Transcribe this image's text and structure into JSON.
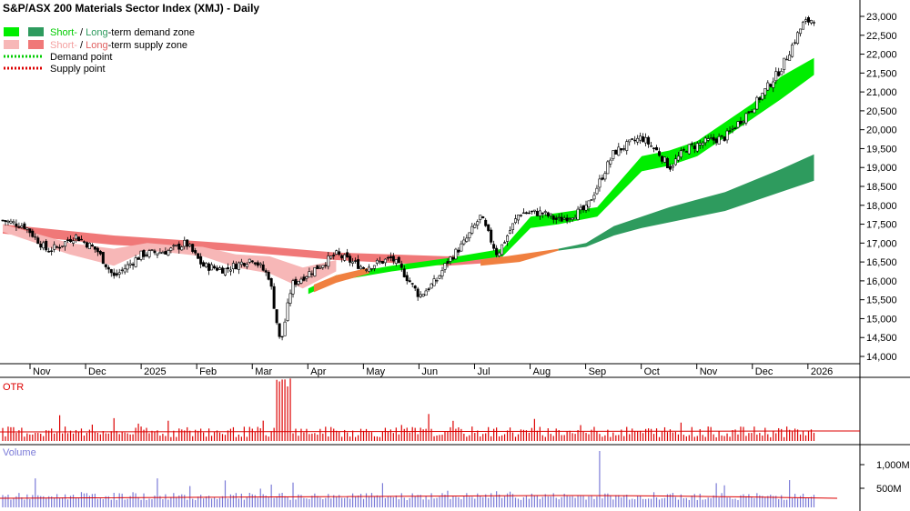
{
  "title": "S&P/ASX 200 Materials Sector Index (XMJ) - Daily",
  "legend": {
    "demand_zone_short": "Short-",
    "demand_zone_sep": " / ",
    "demand_zone_long": "Long",
    "demand_zone_rest": "-term demand zone",
    "supply_zone_short": "Short-",
    "supply_zone_sep": " / ",
    "supply_zone_long": "Long",
    "supply_zone_rest": "-term supply zone",
    "demand_point": "Demand point",
    "supply_point": "Supply point"
  },
  "colors": {
    "short_demand": "#00ee00",
    "long_demand": "#2e9b5e",
    "short_supply": "#f7b7b7",
    "long_supply": "#f07878",
    "transition": "#f08040",
    "demand_point": "#00cc00",
    "supply_point": "#dd0000",
    "otr": "#dd0000",
    "volume": "#7b7bd8",
    "volume_ma": "#dd0000"
  },
  "chart_data": {
    "type": "candlestick",
    "x_labels": [
      "Nov",
      "Dec",
      "2025",
      "Feb",
      "Mar",
      "Apr",
      "May",
      "Jun",
      "Jul",
      "Aug",
      "Sep",
      "Oct",
      "Nov",
      "Dec",
      "2026"
    ],
    "y_ticks": [
      "23,000",
      "22,500",
      "22,000",
      "21,500",
      "21,000",
      "20,500",
      "20,000",
      "19,500",
      "19,000",
      "18,500",
      "18,000",
      "17,500",
      "17,000",
      "16,500",
      "16,000",
      "15,500",
      "15,000",
      "14,500",
      "14,000"
    ],
    "ylim": [
      14000,
      23000
    ],
    "close_path": [
      [
        0,
        17600
      ],
      [
        0.4,
        17450
      ],
      [
        0.8,
        16800
      ],
      [
        1.0,
        16900
      ],
      [
        1.3,
        17200
      ],
      [
        1.7,
        16800
      ],
      [
        2.0,
        16100
      ],
      [
        2.5,
        16700
      ],
      [
        3.0,
        16800
      ],
      [
        3.3,
        17000
      ],
      [
        3.6,
        16400
      ],
      [
        4.0,
        16300
      ],
      [
        4.5,
        16600
      ],
      [
        4.8,
        16100
      ],
      [
        5.0,
        14300
      ],
      [
        5.2,
        15900
      ],
      [
        5.6,
        16300
      ],
      [
        6.0,
        16700
      ],
      [
        6.5,
        16350
      ],
      [
        7.0,
        16600
      ],
      [
        7.2,
        16250
      ],
      [
        7.5,
        15600
      ],
      [
        7.8,
        16000
      ],
      [
        8.0,
        16500
      ],
      [
        8.3,
        17000
      ],
      [
        8.6,
        17700
      ],
      [
        8.9,
        16700
      ],
      [
        9.3,
        17800
      ],
      [
        9.7,
        17800
      ],
      [
        10.0,
        17600
      ],
      [
        10.5,
        17900
      ],
      [
        11.0,
        19400
      ],
      [
        11.5,
        19800
      ],
      [
        11.8,
        19400
      ],
      [
        12.0,
        19000
      ],
      [
        12.3,
        19500
      ],
      [
        12.7,
        19700
      ],
      [
        13.0,
        19800
      ],
      [
        13.5,
        20600
      ],
      [
        14.0,
        21600
      ],
      [
        14.4,
        22800
      ],
      [
        14.6,
        22950
      ]
    ],
    "short_demand_band": {
      "upper": [
        [
          5.5,
          15800
        ],
        [
          6,
          16150
        ],
        [
          7,
          16400
        ],
        [
          8,
          16600
        ],
        [
          9,
          16850
        ],
        [
          9.5,
          17700
        ],
        [
          10,
          17800
        ],
        [
          10.7,
          17950
        ],
        [
          11.5,
          19300
        ],
        [
          12,
          19450
        ],
        [
          12.5,
          19700
        ],
        [
          13,
          20200
        ],
        [
          13.5,
          20700
        ],
        [
          14,
          21400
        ],
        [
          14.6,
          21900
        ]
      ],
      "lower": [
        [
          5.5,
          15650
        ],
        [
          6,
          16000
        ],
        [
          7,
          16250
        ],
        [
          8,
          16450
        ],
        [
          9,
          16650
        ],
        [
          9.5,
          17400
        ],
        [
          10,
          17500
        ],
        [
          10.7,
          17700
        ],
        [
          11.5,
          18900
        ],
        [
          12,
          19050
        ],
        [
          12.5,
          19300
        ],
        [
          13,
          19800
        ],
        [
          13.5,
          20300
        ],
        [
          14,
          20800
        ],
        [
          14.6,
          21450
        ]
      ]
    },
    "long_demand_band": {
      "upper": [
        [
          10,
          16850
        ],
        [
          10.5,
          17000
        ],
        [
          11,
          17450
        ],
        [
          11.5,
          17700
        ],
        [
          12,
          17950
        ],
        [
          12.5,
          18150
        ],
        [
          13,
          18350
        ],
        [
          13.5,
          18650
        ],
        [
          14,
          18950
        ],
        [
          14.6,
          19350
        ]
      ],
      "lower": [
        [
          10,
          16800
        ],
        [
          10.5,
          16900
        ],
        [
          11,
          17200
        ],
        [
          11.5,
          17400
        ],
        [
          12,
          17550
        ],
        [
          12.5,
          17700
        ],
        [
          13,
          17850
        ],
        [
          13.5,
          18100
        ],
        [
          14,
          18350
        ],
        [
          14.6,
          18650
        ]
      ]
    },
    "long_supply_band": {
      "upper": [
        [
          0,
          17500
        ],
        [
          2,
          17200
        ],
        [
          4,
          17000
        ],
        [
          6,
          16750
        ],
        [
          8,
          16650
        ],
        [
          9,
          16700
        ]
      ],
      "lower": [
        [
          0,
          17250
        ],
        [
          2,
          16950
        ],
        [
          4,
          16800
        ],
        [
          6,
          16550
        ],
        [
          8,
          16400
        ],
        [
          9,
          16500
        ]
      ]
    },
    "short_supply_band": {
      "upper": [
        [
          0,
          17500
        ],
        [
          1.2,
          17000
        ],
        [
          2,
          16850
        ],
        [
          2.6,
          17000
        ],
        [
          3.0,
          16950
        ],
        [
          3.6,
          16900
        ],
        [
          4.2,
          16700
        ],
        [
          4.8,
          16650
        ],
        [
          5.4,
          16350
        ],
        [
          6,
          16550
        ]
      ],
      "lower": [
        [
          0,
          17300
        ],
        [
          1.2,
          16700
        ],
        [
          2,
          16400
        ],
        [
          2.6,
          16800
        ],
        [
          3.0,
          16750
        ],
        [
          3.6,
          16650
        ],
        [
          4.2,
          16350
        ],
        [
          4.8,
          16200
        ],
        [
          5.4,
          15800
        ],
        [
          6,
          16250
        ]
      ]
    },
    "panels": [
      {
        "name": "OTR",
        "type": "bar"
      },
      {
        "name": "Volume",
        "type": "bar",
        "y_ticks": [
          "1,000M",
          "500M"
        ]
      }
    ]
  }
}
